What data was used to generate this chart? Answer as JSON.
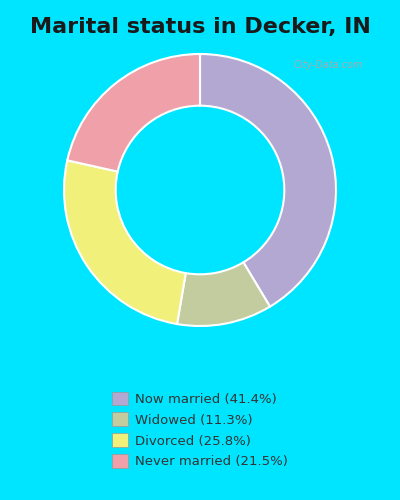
{
  "title": "Marital status in Decker, IN",
  "slices": [
    41.4,
    11.3,
    25.8,
    21.5
  ],
  "labels": [
    "Now married (41.4%)",
    "Widowed (11.3%)",
    "Divorced (25.8%)",
    "Never married (21.5%)"
  ],
  "colors": [
    "#b3a8d1",
    "#c2cc9e",
    "#f0f07a",
    "#f0a0a8"
  ],
  "background_color": "#c8e8d8",
  "outer_background": "#00e5ff",
  "title_fontsize": 16,
  "donut_width": 0.38,
  "start_angle": 90
}
